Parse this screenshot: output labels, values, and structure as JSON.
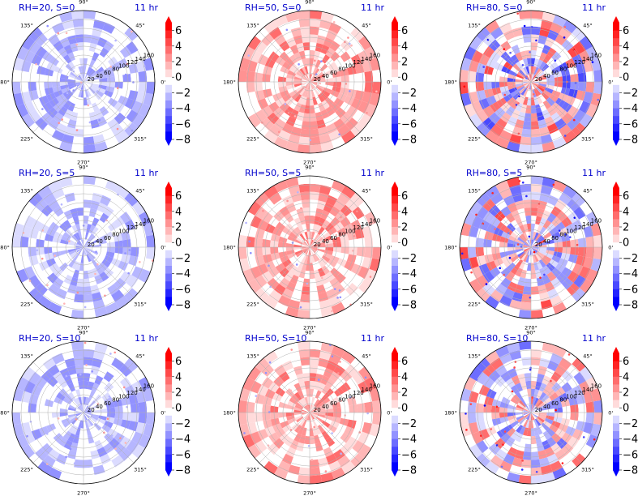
{
  "chart_data": [
    {
      "type": "heatmap",
      "projection": "polar",
      "title_left": "RH=20, S=0",
      "title_right": "11 hr",
      "intensity": 0.28,
      "bias": -0.55
    },
    {
      "type": "heatmap",
      "projection": "polar",
      "title_left": "RH=50, S=0",
      "title_right": "11 hr",
      "intensity": 0.3,
      "bias": 0.75
    },
    {
      "type": "heatmap",
      "projection": "polar",
      "title_left": "RH=80, S=0",
      "title_right": "11 hr",
      "intensity": 0.7,
      "bias": 0.0
    },
    {
      "type": "heatmap",
      "projection": "polar",
      "title_left": "RH=20, S=5",
      "title_right": "11 hr",
      "intensity": 0.28,
      "bias": -0.55
    },
    {
      "type": "heatmap",
      "projection": "polar",
      "title_left": "RH=50, S=5",
      "title_right": "11 hr",
      "intensity": 0.3,
      "bias": 0.75
    },
    {
      "type": "heatmap",
      "projection": "polar",
      "title_left": "RH=80, S=5",
      "title_right": "11 hr",
      "intensity": 0.65,
      "bias": 0.05
    },
    {
      "type": "heatmap",
      "projection": "polar",
      "title_left": "RH=20, S=10",
      "title_right": "11 hr",
      "intensity": 0.28,
      "bias": -0.5
    },
    {
      "type": "heatmap",
      "projection": "polar",
      "title_left": "RH=50, S=10",
      "title_right": "11 hr",
      "intensity": 0.3,
      "bias": 0.7
    },
    {
      "type": "heatmap",
      "projection": "polar",
      "title_left": "RH=80, S=10",
      "title_right": "11 hr",
      "intensity": 0.6,
      "bias": 0.05
    }
  ],
  "shared": {
    "angle_ticks": [
      "0°",
      "45°",
      "90°",
      "135°",
      "180°",
      "225°",
      "270°",
      "315°"
    ],
    "radial_ticks": [
      "20",
      "40",
      "60",
      "80",
      "100",
      "120",
      "140",
      "160"
    ],
    "colorbar_ticks": [
      "6",
      "4",
      "2",
      "0",
      "−2",
      "−4",
      "−6",
      "−8"
    ],
    "colorbar_range": [
      -8,
      7
    ],
    "colormap": "bwr",
    "colors": {
      "title": "#0000cc",
      "max": "#ff0000",
      "min": "#0000ff",
      "mid": "#ffffff"
    }
  }
}
